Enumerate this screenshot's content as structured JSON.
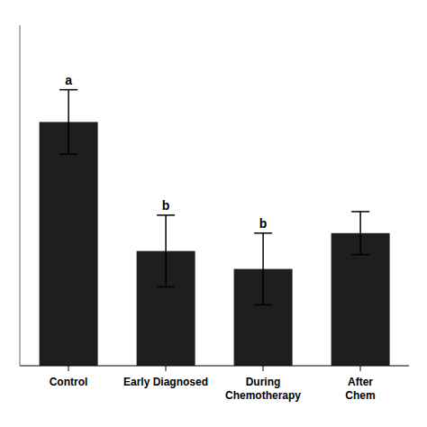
{
  "chart_data": {
    "type": "bar",
    "categories": [
      "Control",
      "Early Diagnosed",
      "During\nChemotherapy",
      "After\nChem"
    ],
    "values": [
      0.68,
      0.32,
      0.27,
      0.37
    ],
    "errors": [
      0.09,
      0.1,
      0.1,
      0.06
    ],
    "letters": [
      "a",
      "b",
      "b",
      null
    ],
    "color": "#1e1e1e",
    "ylim": [
      0,
      0.95
    ],
    "yticks": [],
    "tick_labels": "x"
  }
}
